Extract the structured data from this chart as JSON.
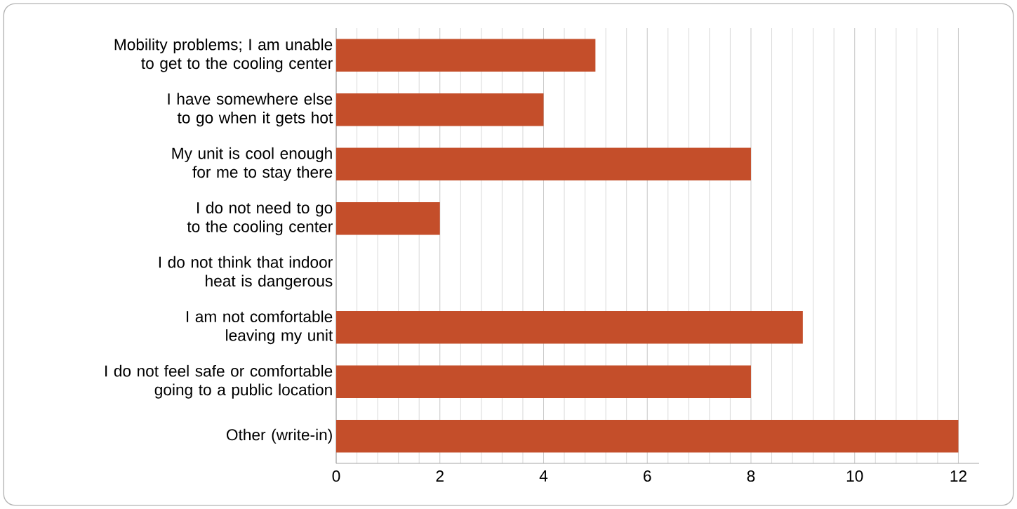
{
  "chart_data": {
    "type": "bar",
    "orientation": "horizontal",
    "categories": [
      "Mobility problems; I am unable to get to the cooling center",
      "I have somewhere else to go when it gets hot",
      "My unit is cool enough for me to stay there",
      "I do not need to go to the cooling center",
      "I do not think that indoor heat is dangerous",
      "I am not comfortable leaving my unit",
      "I do not feel safe or comfortable going to a public location",
      "Other (write-in)"
    ],
    "values": [
      5,
      4,
      8,
      2,
      0,
      9,
      8,
      12
    ],
    "color": "#c44e2a",
    "xlim": [
      0,
      12.4
    ],
    "xticks": [
      0,
      2,
      4,
      6,
      8,
      10,
      12
    ],
    "grid": "x"
  }
}
